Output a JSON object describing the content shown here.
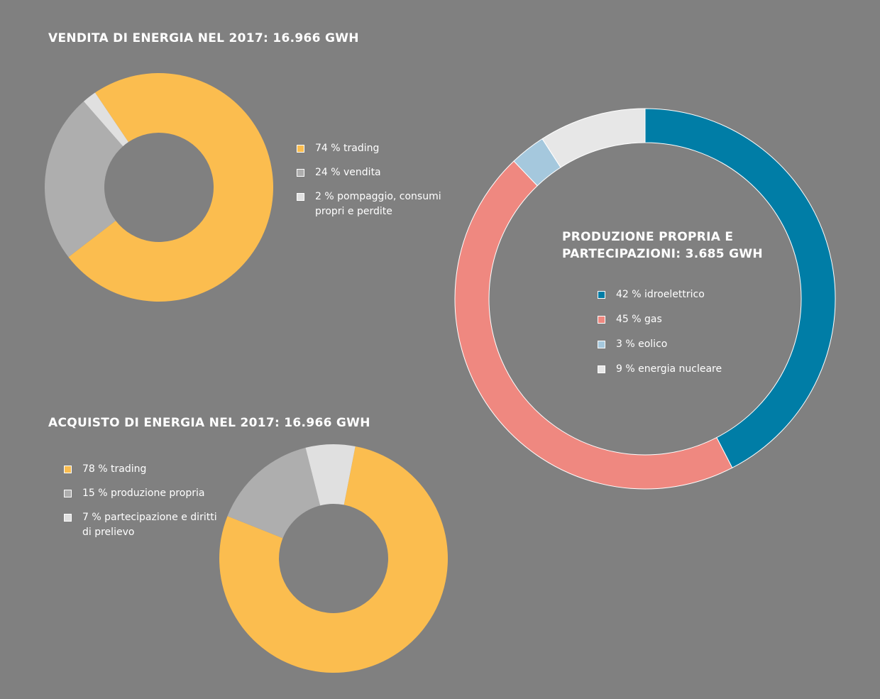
{
  "chart_data": [
    {
      "type": "pie",
      "title": "VENDITA DI ENERGIA NEL 2017: 16.966 GWH",
      "categories": [
        "74 % trading",
        "24 % vendita",
        "2 % pompaggio, consumi propri e perdite"
      ],
      "values": [
        74,
        24,
        2
      ],
      "colors": [
        "#fbbd4f",
        "#aeaeae",
        "#e0e0e0"
      ]
    },
    {
      "type": "pie",
      "title": "ACQUISTO DI ENERGIA NEL 2017: 16.966 GWH",
      "categories": [
        "78 % trading",
        "15 % produzione propria",
        "7 % partecipazione e diritti di prelievo"
      ],
      "values": [
        78,
        15,
        7
      ],
      "colors": [
        "#fbbd4f",
        "#aeaeae",
        "#e0e0e0"
      ]
    },
    {
      "type": "pie",
      "title": "PRODUZIONE PROPRIA E PARTECIPAZIONI: 3.685 GWH",
      "categories": [
        "42 % idroelettrico",
        "45 % gas",
        "3 % eolico",
        "9 % energia nucleare"
      ],
      "values": [
        42,
        45,
        3,
        9
      ],
      "colors": [
        "#007da6",
        "#ef8880",
        "#a5c8dd",
        "#e7e7e7"
      ]
    }
  ]
}
